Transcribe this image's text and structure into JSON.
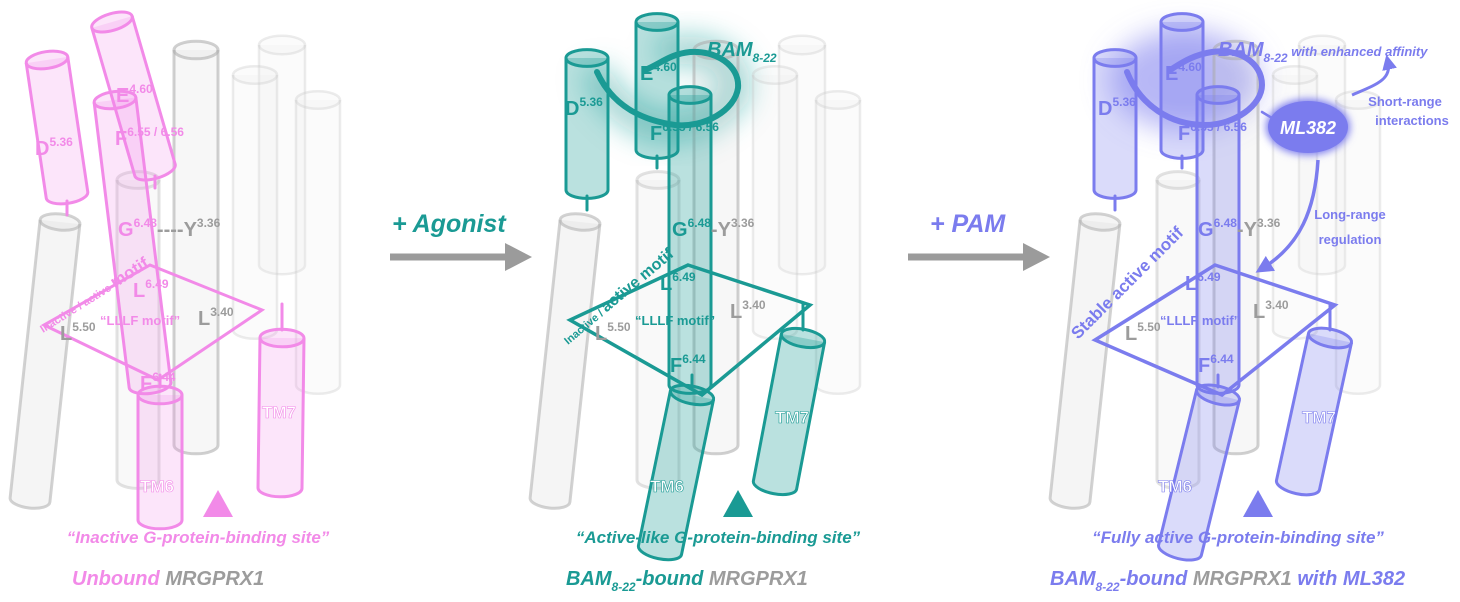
{
  "colors": {
    "unbound": "#f28ae8",
    "agonist": "#1a9a94",
    "pam": "#7b7cee",
    "gray": "#9c9c9c",
    "arrow": "#9b9b9b"
  },
  "arrows": {
    "agonist": "+ Agonist",
    "pam": "+ PAM"
  },
  "panels": [
    {
      "id": "unbound",
      "residues": {
        "d": "D",
        "d_sup": "5.36",
        "e": "E",
        "e_sup": "4.60",
        "f": "F",
        "f_sup": "6.55 / 6.56",
        "g": "G",
        "g_sup": "6.48",
        "y": "Y",
        "y_sup": "3.36",
        "l649": "L",
        "l649_sup": "6.49",
        "l550": "L",
        "l550_sup": "5.50",
        "l340": "L",
        "l340_sup": "3.40",
        "f644": "F",
        "f644_sup": "6.44"
      },
      "gy_link": "----",
      "motif_prefix": "Inactive / active",
      "motif_word": "motif",
      "lllf": "“LLLF motif”",
      "tm6": "TM6",
      "tm7": "TM7",
      "site": "“Inactive G-protein-binding site”",
      "caption_colored": "Unbound",
      "caption_gray": "MRGPRX1"
    },
    {
      "id": "agonist",
      "residues": {
        "d": "D",
        "d_sup": "5.36",
        "e": "E",
        "e_sup": "4.60",
        "f": "F",
        "f_sup": "6.55 / 6.56",
        "g": "G",
        "g_sup": "6.48",
        "y": "Y",
        "y_sup": "3.36",
        "l649": "L",
        "l649_sup": "6.49",
        "l550": "L",
        "l550_sup": "5.50",
        "l340": "L",
        "l340_sup": "3.40",
        "f644": "F",
        "f644_sup": "6.44"
      },
      "gy_link": "-",
      "motif_prefix": "Inactive /",
      "motif_word": "active motif",
      "lllf": "“LLLF motif”",
      "tm6": "TM6",
      "tm7": "TM7",
      "ligand": "BAM",
      "ligand_sub": "8-22",
      "site": "“Active-like G-protein-binding site”",
      "caption_bam": "BAM",
      "caption_sub": "8-22",
      "caption_colored": "-bound",
      "caption_gray": "MRGPRX1"
    },
    {
      "id": "pam",
      "residues": {
        "d": "D",
        "d_sup": "5.36",
        "e": "E",
        "e_sup": "4.60",
        "f": "F",
        "f_sup": "6.55 / 6.56",
        "g": "G",
        "g_sup": "6.48",
        "y": "Y",
        "y_sup": "3.36",
        "l649": "L",
        "l649_sup": "6.49",
        "l550": "L",
        "l550_sup": "5.50",
        "l340": "L",
        "l340_sup": "3.40",
        "f644": "F",
        "f644_sup": "6.44"
      },
      "gy_link": "-",
      "motif_prefix": "",
      "motif_word": "Stable active motif",
      "lllf": "“LLLF motif”",
      "tm6": "TM6",
      "tm7": "TM7",
      "ligand": "BAM",
      "ligand_sub": "8-22",
      "ligand_note": "with enhanced affinity",
      "pam_name": "ML382",
      "short_range_1": "Short-range",
      "short_range_2": "interactions",
      "long_range_1": "Long-range",
      "long_range_2": "regulation",
      "site": "“Fully active G-protein-binding site”",
      "caption_bam": "BAM",
      "caption_sub": "8-22",
      "caption_colored": "-bound",
      "caption_gray": "MRGPRX1",
      "caption_tail": "with ML382"
    }
  ]
}
